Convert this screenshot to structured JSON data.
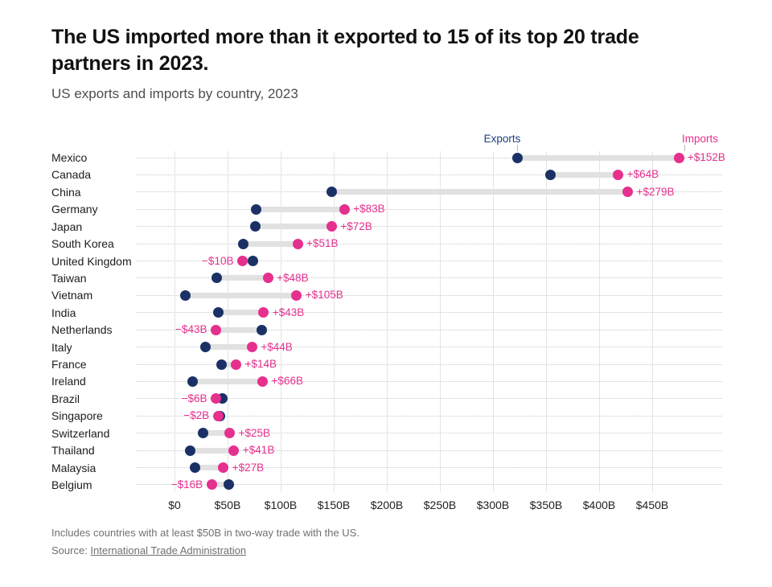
{
  "header": {
    "title": "The US imported more than it exported to 15 of its top 20 trade partners in 2023.",
    "subtitle": "US exports and imports by country, 2023"
  },
  "chart_data": {
    "type": "dumbbell",
    "title": "The US imported more than it exported to 15 of its top 20 trade partners in 2023.",
    "subtitle": "US exports and imports by country, 2023",
    "unit": "billions of US dollars",
    "legend": {
      "exports_label": "Exports",
      "imports_label": "Imports",
      "position": "top, pointing at first row dots"
    },
    "x_axis": {
      "tick_labels": [
        "$0",
        "$50B",
        "$100B",
        "$150B",
        "$200B",
        "$250B",
        "$300B",
        "$350B",
        "$400B",
        "$450B"
      ],
      "tick_values": [
        0,
        50,
        100,
        150,
        200,
        250,
        300,
        350,
        400,
        450
      ],
      "range": [
        0,
        450
      ],
      "grid": "vertical solid light gray; horizontal dotted per row"
    },
    "rows": [
      {
        "country": "Mexico",
        "exports": 323,
        "imports": 475,
        "diff_label": "+$152B"
      },
      {
        "country": "Canada",
        "exports": 354,
        "imports": 418,
        "diff_label": "+$64B"
      },
      {
        "country": "China",
        "exports": 148,
        "imports": 427,
        "diff_label": "+$279B"
      },
      {
        "country": "Germany",
        "exports": 77,
        "imports": 160,
        "diff_label": "+$83B"
      },
      {
        "country": "Japan",
        "exports": 76,
        "imports": 148,
        "diff_label": "+$72B"
      },
      {
        "country": "South Korea",
        "exports": 65,
        "imports": 116,
        "diff_label": "+$51B"
      },
      {
        "country": "United Kingdom",
        "exports": 74,
        "imports": 64,
        "diff_label": "−$10B"
      },
      {
        "country": "Taiwan",
        "exports": 40,
        "imports": 88,
        "diff_label": "+$48B"
      },
      {
        "country": "Vietnam",
        "exports": 10,
        "imports": 115,
        "diff_label": "+$105B"
      },
      {
        "country": "India",
        "exports": 41,
        "imports": 84,
        "diff_label": "+$43B"
      },
      {
        "country": "Netherlands",
        "exports": 82,
        "imports": 39,
        "diff_label": "−$43B"
      },
      {
        "country": "Italy",
        "exports": 29,
        "imports": 73,
        "diff_label": "+$44B"
      },
      {
        "country": "France",
        "exports": 44,
        "imports": 58,
        "diff_label": "+$14B"
      },
      {
        "country": "Ireland",
        "exports": 17,
        "imports": 83,
        "diff_label": "+$66B"
      },
      {
        "country": "Brazil",
        "exports": 45,
        "imports": 39,
        "diff_label": "−$6B"
      },
      {
        "country": "Singapore",
        "exports": 43,
        "imports": 41,
        "diff_label": "−$2B"
      },
      {
        "country": "Switzerland",
        "exports": 27,
        "imports": 52,
        "diff_label": "+$25B"
      },
      {
        "country": "Thailand",
        "exports": 15,
        "imports": 56,
        "diff_label": "+$41B"
      },
      {
        "country": "Malaysia",
        "exports": 19,
        "imports": 46,
        "diff_label": "+$27B"
      },
      {
        "country": "Belgium",
        "exports": 51,
        "imports": 35,
        "diff_label": "−$16B"
      }
    ],
    "colors": {
      "exports_dot": "#1b3166",
      "exports_text": "#1e3f7c",
      "imports_pink": "#e5308e",
      "bar_gray": "#e1e1e1",
      "grid_gray": "#e4e4e4",
      "row_dotted_gray": "#c9c9c9"
    }
  },
  "footer": {
    "footnote": "Includes countries with at least $50B in two-way trade with the US.",
    "source_prefix": "Source: ",
    "source_link": "International Trade Administration"
  }
}
